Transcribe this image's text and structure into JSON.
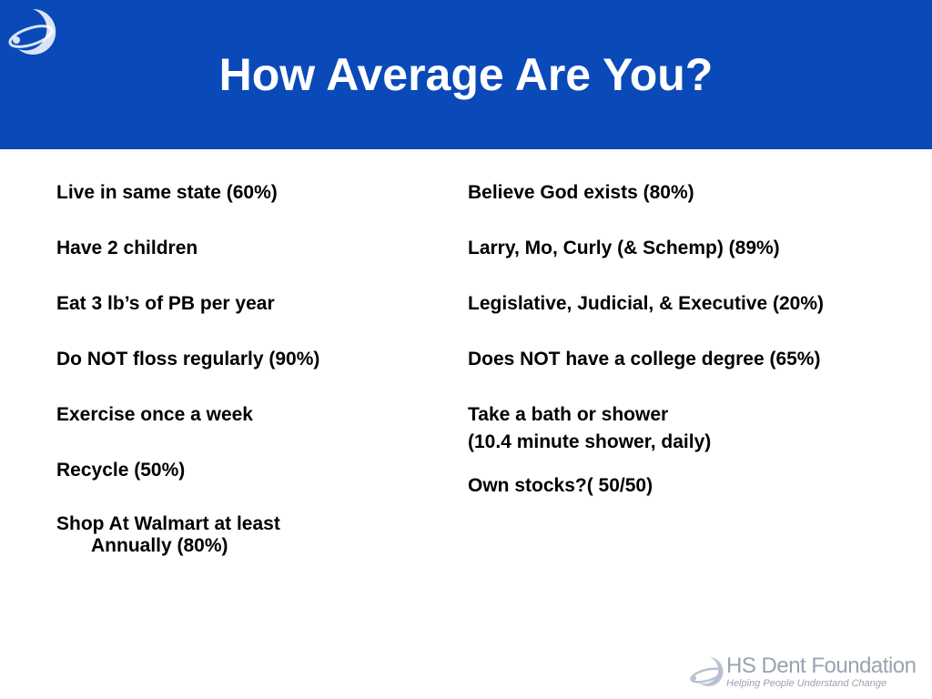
{
  "header": {
    "title": "How Average Are You?",
    "logo_icon": "foundation-swirl-logo",
    "background_color": "#0a4ab8"
  },
  "left_column": [
    {
      "text": "Live in same state (60%)"
    },
    {
      "text": "Have 2 children"
    },
    {
      "text": "Eat 3 lb’s of PB per year"
    },
    {
      "text": "Do NOT floss regularly (90%)"
    },
    {
      "text": "Exercise once a week"
    },
    {
      "text": "Recycle (50%)"
    },
    {
      "text": "Shop At Walmart at least",
      "continuation": "Annually (80%)"
    }
  ],
  "right_column": [
    {
      "text": "Believe God exists (80%)"
    },
    {
      "text": "Larry, Mo, Curly (& Schemp) (89%)"
    },
    {
      "text": "Legislative, Judicial, & Executive (20%)"
    },
    {
      "text": "Does NOT have a college degree (65%)"
    },
    {
      "text": "Take a bath or shower",
      "continuation": "(10.4 minute shower, daily)"
    },
    {
      "text": "Own stocks?( 50/50)"
    }
  ],
  "footer": {
    "name": "HS Dent Foundation",
    "tagline": "Helping People Understand Change",
    "logo_icon": "foundation-swirl-logo"
  }
}
